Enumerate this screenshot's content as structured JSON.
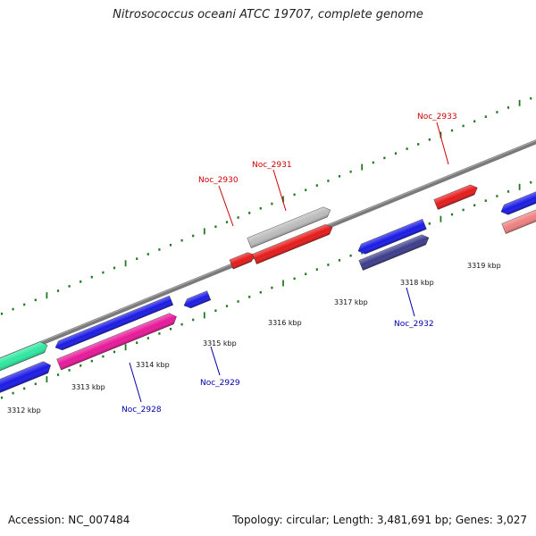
{
  "title": "Nitrosococcus oceani ATCC 19707, complete genome",
  "footer": {
    "accession": "Accession: NC_007484",
    "summary": "Topology: circular; Length: 3,481,691 bp; Genes: 3,027"
  },
  "colors": {
    "backbone": "#7a7a7a",
    "tick_major": "#1f7a1f",
    "forward_label": "#cc0000",
    "reverse_label": "#0000aa"
  },
  "scale_labels": [
    "3312 kbp",
    "3313 kbp",
    "3314 kbp",
    "3315 kbp",
    "3316 kbp",
    "3317 kbp",
    "3318 kbp",
    "3319 kbp"
  ],
  "gene_labels": [
    {
      "text": "Noc_2928",
      "strand": "reverse"
    },
    {
      "text": "Noc_2929",
      "strand": "reverse"
    },
    {
      "text": "Noc_2930",
      "strand": "forward"
    },
    {
      "text": "Noc_2931",
      "strand": "forward"
    },
    {
      "text": "Noc_2932",
      "strand": "reverse"
    },
    {
      "text": "Noc_2933",
      "strand": "forward"
    }
  ],
  "features": [
    {
      "name": "green-feature",
      "color": "#2ee8a0"
    },
    {
      "name": "blue-feature-left",
      "color": "#1a1ae6"
    },
    {
      "name": "blue-feature-long",
      "color": "#1a1ae6"
    },
    {
      "name": "magenta-feature",
      "color": "#e8189a"
    },
    {
      "name": "blue-feature-small",
      "color": "#1a1ae6"
    },
    {
      "name": "red-feature-small",
      "color": "#e61a1a"
    },
    {
      "name": "grey-feature",
      "color": "#bcbcbc"
    },
    {
      "name": "red-feature-long",
      "color": "#e61a1a"
    },
    {
      "name": "blue-feature-noc2932",
      "color": "#1a1ae6"
    },
    {
      "name": "navy-feature-noc2932",
      "color": "#3c3c8c"
    },
    {
      "name": "red-feature-noc2933",
      "color": "#e61a1a"
    },
    {
      "name": "blue-feature-right",
      "color": "#1a1ae6"
    },
    {
      "name": "pink-feature-right",
      "color": "#f08080"
    }
  ]
}
